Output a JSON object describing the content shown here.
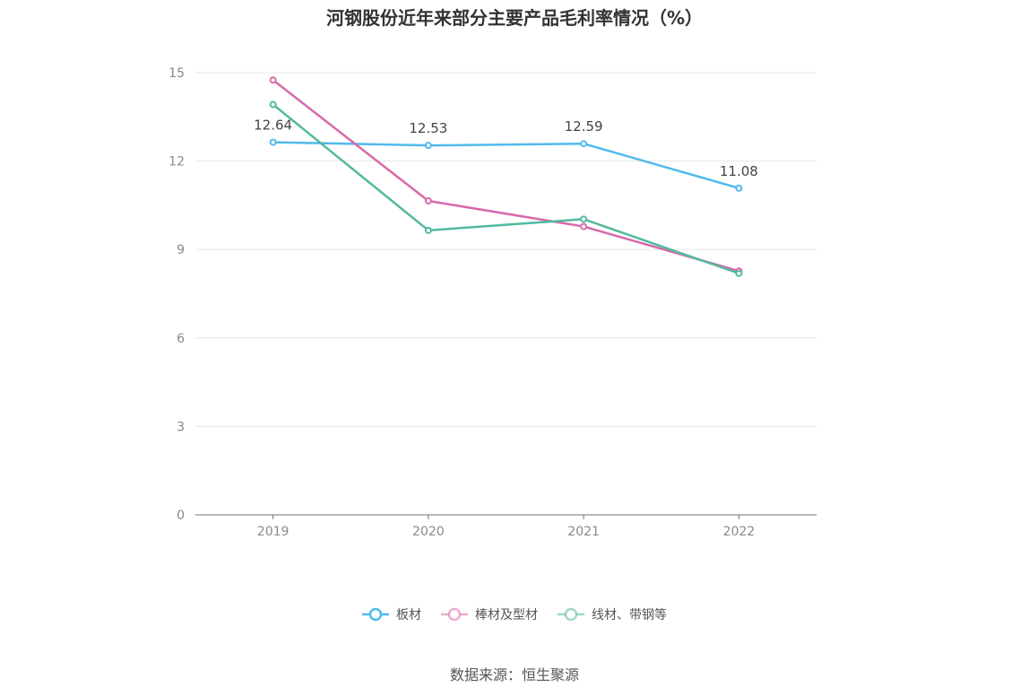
{
  "chart_data": {
    "type": "line",
    "title": "河钢股份近年来部分主要产品毛利率情况（%）",
    "categories": [
      "2019",
      "2020",
      "2021",
      "2022"
    ],
    "series": [
      {
        "name": "板材",
        "values": [
          12.64,
          12.53,
          12.59,
          11.08
        ],
        "color": "#4fbaeb",
        "show_labels": true
      },
      {
        "name": "棒材及型材",
        "values": [
          14.75,
          10.65,
          9.78,
          8.27
        ],
        "color": "#d66aa9",
        "show_labels": false
      },
      {
        "name": "线材、带钢等",
        "values": [
          13.92,
          9.65,
          10.03,
          8.19
        ],
        "color": "#52b99f",
        "show_labels": false
      }
    ],
    "ylim": [
      0,
      15
    ],
    "yticks": [
      0,
      3,
      6,
      9,
      12,
      15
    ],
    "grid": true,
    "legend": "bottom-center"
  },
  "footer": {
    "source": "数据来源：恒生聚源"
  }
}
